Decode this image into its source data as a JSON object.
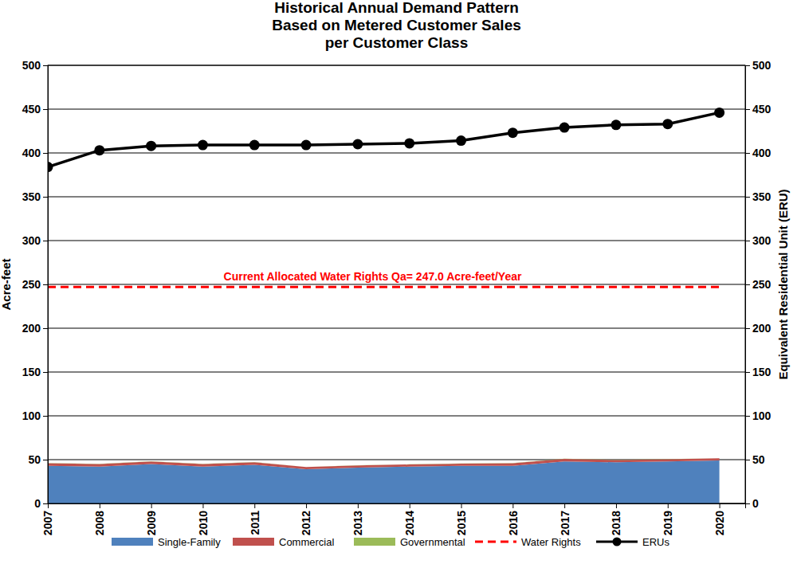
{
  "chart_data": {
    "type": "area",
    "title": [
      "Historical Annual Demand Pattern",
      "Based on Metered Customer Sales",
      "per Customer Class"
    ],
    "y_label": "Acre-feet",
    "y2_label": "Equivalent Residential Unit (ERU)",
    "x": [
      2007,
      2008,
      2009,
      2010,
      2011,
      2012,
      2013,
      2014,
      2015,
      2016,
      2017,
      2018,
      2019,
      2020
    ],
    "xlim": [
      2007,
      2020.5
    ],
    "xticks": [
      2007,
      2008,
      2009,
      2010,
      2011,
      2012,
      2013,
      2014,
      2015,
      2016,
      2017,
      2018,
      2019,
      2020
    ],
    "ylim": [
      0,
      500
    ],
    "yticks": [
      0,
      50,
      100,
      150,
      200,
      250,
      300,
      350,
      400,
      450,
      500
    ],
    "y2lim": [
      0,
      500
    ],
    "y2ticks": [
      0,
      50,
      100,
      150,
      200,
      250,
      300,
      350,
      400,
      450,
      500
    ],
    "grid": true,
    "stacked": true,
    "legend": "bottom",
    "series": [
      {
        "name": "Single-Family",
        "type": "area",
        "color": "#4f81bd",
        "values": [
          43,
          42,
          45,
          42,
          44,
          39,
          41,
          42,
          43,
          43,
          48,
          47,
          48,
          49
        ]
      },
      {
        "name": "Commercial",
        "type": "area",
        "color": "#c0504d",
        "values": [
          3,
          3,
          3,
          3,
          3,
          2.5,
          2.5,
          2.5,
          2.5,
          3,
          3,
          2.5,
          2.5,
          2.5
        ]
      },
      {
        "name": "Governmental",
        "type": "area",
        "color": "#9bbb59",
        "values": [
          0.2,
          0.2,
          0.2,
          0.2,
          0.2,
          0.2,
          0.2,
          0.2,
          0.2,
          0.2,
          0.2,
          0.2,
          0.2,
          0.2
        ]
      },
      {
        "name": "Water Rights",
        "type": "line",
        "color": "#ff0000",
        "line_style": "dashed",
        "values": [
          247,
          247,
          247,
          247,
          247,
          247,
          247,
          247,
          247,
          247,
          247,
          247,
          247,
          247
        ]
      },
      {
        "name": "ERUs",
        "type": "line",
        "color": "#000000",
        "marker": "circle",
        "axis": "y2",
        "values": [
          384,
          403,
          408,
          409,
          409,
          409,
          410,
          411,
          414,
          423,
          429,
          432,
          433,
          446
        ]
      }
    ],
    "annotations": [
      {
        "text": "Current Allocated Water Rights Qa= 247.0 Acre-feet/Year",
        "color": "#ff0000"
      }
    ]
  }
}
